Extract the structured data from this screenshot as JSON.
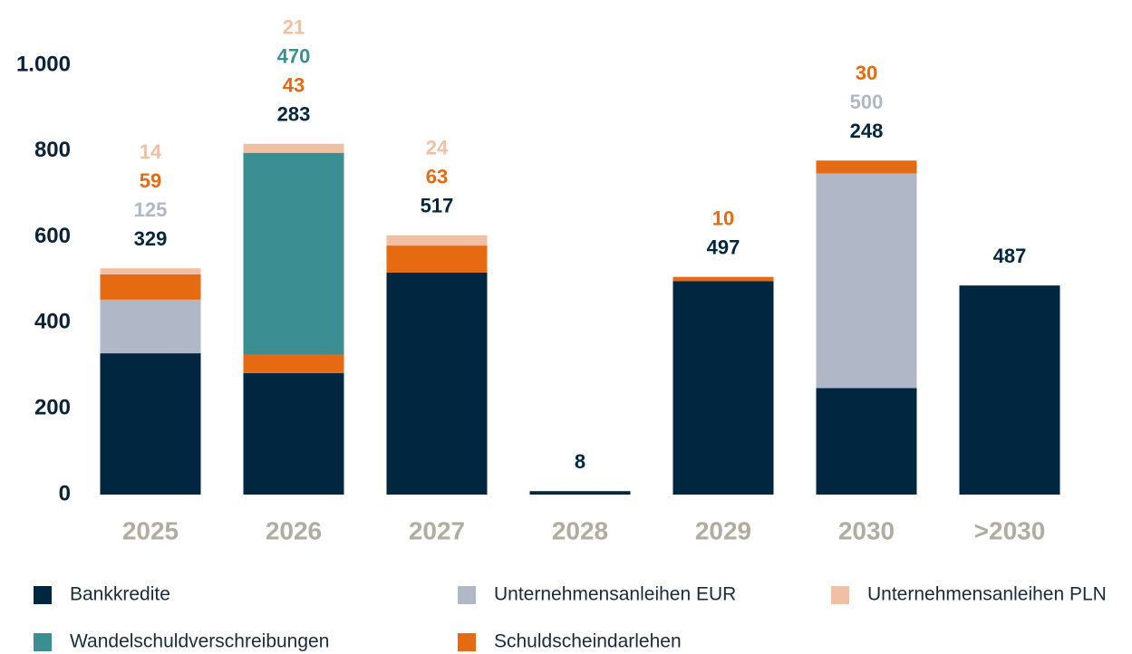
{
  "chart_data": {
    "type": "stacked_bar",
    "categories": [
      "2025",
      "2026",
      "2027",
      "2028",
      "2029",
      "2030",
      ">2030"
    ],
    "series": [
      {
        "name": "Bankkredite",
        "color": "#012640",
        "values": [
          329,
          283,
          517,
          8,
          497,
          248,
          487
        ]
      },
      {
        "name": "Unternehmensanleihen EUR",
        "color": "#b0b7c6",
        "values": [
          125,
          null,
          null,
          null,
          null,
          500,
          null
        ]
      },
      {
        "name": "Unternehmensanleihen PLN",
        "color": "#f1c0a4",
        "values": [
          14,
          21,
          24,
          null,
          null,
          null,
          null
        ]
      },
      {
        "name": "Wandelschuldverschreibungen",
        "color": "#3b8f92",
        "values": [
          null,
          470,
          null,
          null,
          null,
          null,
          null
        ]
      },
      {
        "name": "Schuldscheindarlehen",
        "color": "#e56a12",
        "values": [
          59,
          43,
          63,
          null,
          10,
          30,
          null
        ]
      }
    ],
    "ylim": [
      0,
      1000
    ],
    "yticks": [
      0,
      200,
      400,
      600,
      800,
      {
        "value": 1000,
        "label": "1.000"
      }
    ],
    "grid": false
  }
}
